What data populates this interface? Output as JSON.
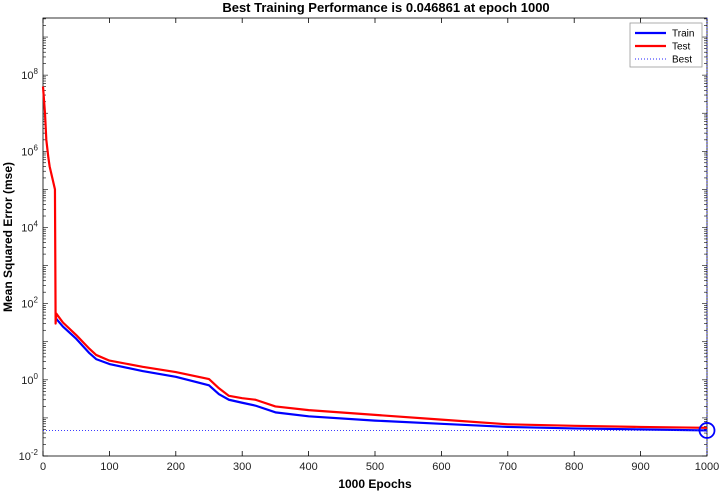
{
  "chart_data": {
    "type": "line",
    "title": "Best Training Performance is 0.046861 at epoch 1000",
    "xlabel": "1000 Epochs",
    "ylabel": "Mean Squared Error  (mse)",
    "xlim": [
      0,
      1000
    ],
    "ylim_log10": [
      -2,
      9.5
    ],
    "yscale": "log",
    "grid": false,
    "legend_position": "top-right",
    "x_ticks": [
      0,
      100,
      200,
      300,
      400,
      500,
      600,
      700,
      800,
      900,
      1000
    ],
    "y_ticks": [
      {
        "exp": -2,
        "label_base": "10",
        "label_exp": "-2"
      },
      {
        "exp": 0,
        "label_base": "10",
        "label_exp": "0"
      },
      {
        "exp": 2,
        "label_base": "10",
        "label_exp": "2"
      },
      {
        "exp": 4,
        "label_base": "10",
        "label_exp": "4"
      },
      {
        "exp": 6,
        "label_base": "10",
        "label_exp": "6"
      },
      {
        "exp": 8,
        "label_base": "10",
        "label_exp": "8"
      }
    ],
    "series": [
      {
        "name": "Train",
        "color": "#0000ff",
        "style": "solid",
        "points": [
          [
            20,
            40
          ],
          [
            30,
            25
          ],
          [
            50,
            12
          ],
          [
            70,
            5
          ],
          [
            80,
            3.5
          ],
          [
            100,
            2.6
          ],
          [
            150,
            1.7
          ],
          [
            200,
            1.2
          ],
          [
            250,
            0.72
          ],
          [
            265,
            0.42
          ],
          [
            280,
            0.3
          ],
          [
            300,
            0.25
          ],
          [
            320,
            0.21
          ],
          [
            350,
            0.14
          ],
          [
            400,
            0.11
          ],
          [
            500,
            0.085
          ],
          [
            600,
            0.07
          ],
          [
            700,
            0.058
          ],
          [
            800,
            0.053
          ],
          [
            900,
            0.05
          ],
          [
            1000,
            0.046861
          ]
        ]
      },
      {
        "name": "Test",
        "color": "#ff0000",
        "style": "solid",
        "points": [
          [
            0,
            50000000
          ],
          [
            3,
            10000000
          ],
          [
            5,
            2000000
          ],
          [
            8,
            700000
          ],
          [
            10,
            400000
          ],
          [
            14,
            200000
          ],
          [
            18,
            100000
          ],
          [
            19,
            30
          ],
          [
            20,
            55
          ],
          [
            30,
            32
          ],
          [
            50,
            15
          ],
          [
            70,
            6.5
          ],
          [
            80,
            4.5
          ],
          [
            100,
            3.2
          ],
          [
            150,
            2.2
          ],
          [
            200,
            1.6
          ],
          [
            250,
            1.05
          ],
          [
            265,
            0.6
          ],
          [
            280,
            0.38
          ],
          [
            300,
            0.33
          ],
          [
            320,
            0.3
          ],
          [
            350,
            0.2
          ],
          [
            400,
            0.16
          ],
          [
            500,
            0.12
          ],
          [
            600,
            0.09
          ],
          [
            700,
            0.068
          ],
          [
            800,
            0.062
          ],
          [
            900,
            0.058
          ],
          [
            1000,
            0.055
          ]
        ]
      },
      {
        "name": "Best",
        "color": "#2020ff",
        "style": "dotted",
        "best_x": 1000,
        "best_y": 0.046861
      }
    ]
  }
}
